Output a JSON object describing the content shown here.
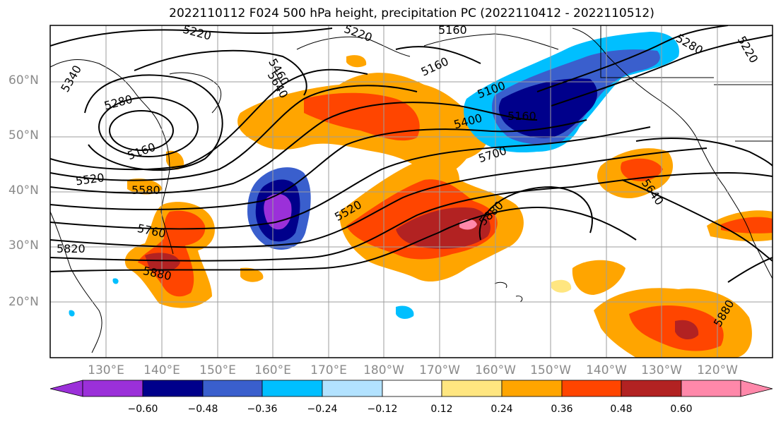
{
  "title": "2022110112 F024 500 hPa height, precipitation PC (2022110412 - 2022110512)",
  "lat_labels": [
    "60°N",
    "50°N",
    "40°N",
    "30°N",
    "20°N"
  ],
  "lon_labels": [
    "130°E",
    "140°E",
    "150°E",
    "160°E",
    "170°E",
    "180°W",
    "170°W",
    "160°W",
    "150°W",
    "140°W",
    "130°W",
    "120°W"
  ],
  "colorbar": {
    "ticks": [
      "−0.60",
      "−0.48",
      "−0.36",
      "−0.24",
      "−0.12",
      "0.12",
      "0.24",
      "0.36",
      "0.48",
      "0.60"
    ],
    "colors": [
      "#9b30d9",
      "#00008b",
      "#3a5fcd",
      "#00bfff",
      "#b2e2ff",
      "#ffffff",
      "#ffe680",
      "#ffa500",
      "#ff4500",
      "#b22222",
      "#ff88aa"
    ]
  },
  "contour_labels": [
    "5340",
    "5280",
    "5220",
    "5220",
    "5160",
    "5160",
    "5160",
    "5100",
    "5160",
    "5400",
    "5460",
    "5520",
    "5580",
    "5520",
    "5640",
    "5700",
    "5760",
    "5820",
    "5880",
    "5880",
    "5880",
    "5640",
    "5280",
    "5220"
  ]
}
